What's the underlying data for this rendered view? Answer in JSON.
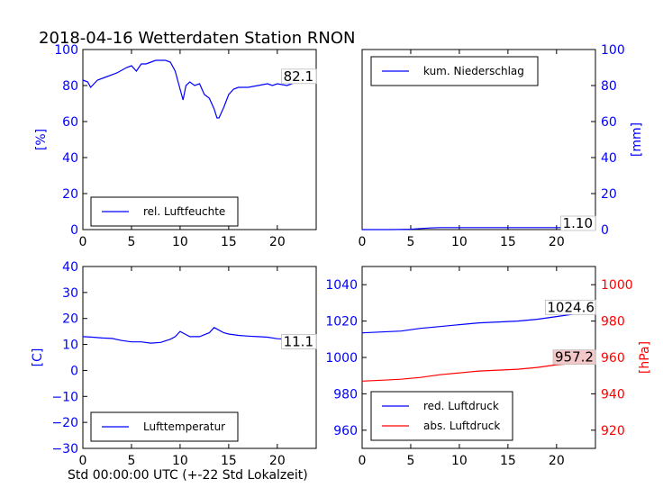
{
  "chart_data": {
    "title": "2018-04-16 Wetterdaten Station RNON",
    "xlabel": "Std 00:00:00 UTC (+-22 Std Lokalzeit)",
    "xticks": [
      "0",
      "5",
      "10",
      "15",
      "20"
    ],
    "xlim": [
      0,
      24
    ],
    "panels": [
      {
        "type": "line",
        "ylabel": "[%]",
        "ylim": [
          0,
          100
        ],
        "yticks": [
          "0",
          "20",
          "40",
          "60",
          "80",
          "100"
        ],
        "legend": "rel. Luftfeuchte",
        "last_value_label": "82.1",
        "series": [
          {
            "name": "rel. Luftfeuchte",
            "color": "#0000ff",
            "x": [
              0,
              0.5,
              0.8,
              1.5,
              2.5,
              3.5,
              4.5,
              5.0,
              5.5,
              6.0,
              6.5,
              7.0,
              7.5,
              8.0,
              8.5,
              9.0,
              9.5,
              10.0,
              10.3,
              10.6,
              11.0,
              11.5,
              12.0,
              12.5,
              13.0,
              13.5,
              13.8,
              14.0,
              14.5,
              15.0,
              15.5,
              16.0,
              17.0,
              18.0,
              19.0,
              19.5,
              20.0,
              21.0,
              22.0,
              23.0,
              24.0
            ],
            "y": [
              83,
              82,
              79,
              83,
              85,
              87,
              90,
              91,
              88,
              92,
              92,
              93,
              94,
              94,
              94,
              93,
              88,
              78,
              72,
              80,
              82,
              80,
              81,
              75,
              73,
              67,
              62,
              62,
              68,
              75,
              78,
              79,
              79,
              80,
              81,
              80,
              81,
              80,
              82,
              82,
              82.1
            ]
          }
        ]
      },
      {
        "type": "line",
        "ylabel": "[mm]",
        "ylim": [
          0,
          100
        ],
        "yticks": [
          "0",
          "20",
          "40",
          "60",
          "80",
          "100"
        ],
        "legend": "kum. Niederschlag",
        "last_value_label": "1.10",
        "series": [
          {
            "name": "kum. Niederschlag",
            "color": "#0000ff",
            "x": [
              0,
              3,
              5,
              6,
              7,
              8,
              10,
              15,
              20,
              24
            ],
            "y": [
              0,
              0,
              0.2,
              0.6,
              0.9,
              1.1,
              1.1,
              1.1,
              1.1,
              1.1
            ]
          }
        ]
      },
      {
        "type": "line",
        "ylabel": "[C]",
        "ylim": [
          -30,
          40
        ],
        "yticks": [
          "−30",
          "−20",
          "−10",
          "0",
          "10",
          "20",
          "30",
          "40"
        ],
        "legend": "Lufttemperatur",
        "last_value_label": "11.1",
        "series": [
          {
            "name": "Lufttemperatur",
            "color": "#0000ff",
            "x": [
              0,
              1,
              2,
              3,
              4,
              5,
              6,
              7,
              8,
              9,
              9.5,
              10,
              10.5,
              11,
              12,
              13,
              13.5,
              14,
              14.5,
              15,
              16,
              17,
              18,
              19,
              20,
              21,
              22,
              23,
              24
            ],
            "y": [
              13,
              12.8,
              12.5,
              12.3,
              11.5,
              11.0,
              11.0,
              10.5,
              10.8,
              12,
              13,
              15,
              14,
              13,
              13,
              14.5,
              16.5,
              15.5,
              14.5,
              14,
              13.5,
              13.2,
              13.0,
              12.8,
              12.2,
              12.0,
              11.8,
              11.5,
              11.1
            ]
          }
        ]
      },
      {
        "type": "line",
        "ylabel": "[hPa]",
        "ylim_left": [
          950,
          1050
        ],
        "ylim_right": [
          910,
          1010
        ],
        "yticks_left": [
          "960",
          "980",
          "1000",
          "1020",
          "1040"
        ],
        "yticks_right": [
          "920",
          "940",
          "960",
          "980",
          "1000"
        ],
        "legend": [
          "red. Luftdruck",
          "abs. Luftdruck"
        ],
        "last_value_labels": [
          "1024.6",
          "957.2"
        ],
        "series": [
          {
            "name": "red. Luftdruck",
            "color": "#0000ff",
            "axis": "left",
            "x": [
              0,
              2,
              4,
              6,
              8,
              10,
              12,
              14,
              16,
              18,
              20,
              22,
              24
            ],
            "y": [
              1013.5,
              1014,
              1014.5,
              1016,
              1017,
              1018,
              1019,
              1019.5,
              1020,
              1021,
              1022.5,
              1024,
              1024.6
            ]
          },
          {
            "name": "abs. Luftdruck",
            "color": "#ff0000",
            "axis": "right",
            "x": [
              0,
              2,
              4,
              6,
              8,
              10,
              12,
              14,
              16,
              18,
              20,
              22,
              24
            ],
            "y": [
              947,
              947.5,
              948,
              949,
              950.5,
              951.5,
              952.5,
              953,
              953.5,
              954.5,
              956,
              956.8,
              957.2
            ]
          }
        ]
      }
    ]
  }
}
